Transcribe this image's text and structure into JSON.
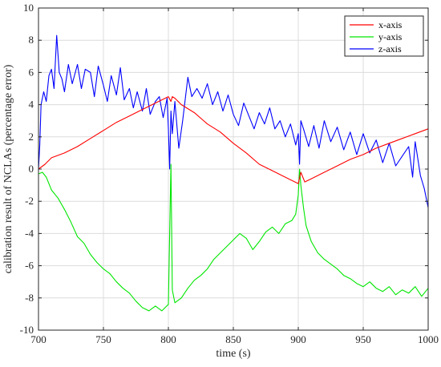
{
  "chart_data": {
    "type": "line",
    "title": "",
    "xlabel": "time (s)",
    "ylabel": "calibration result of NCLAs (percentage error)",
    "xlim": [
      700,
      1000
    ],
    "ylim": [
      -10,
      10
    ],
    "xticks": [
      700,
      750,
      800,
      850,
      900,
      950,
      1000
    ],
    "yticks": [
      -10,
      -8,
      -6,
      -4,
      -2,
      0,
      2,
      4,
      6,
      8,
      10
    ],
    "grid": true,
    "legend": "top-right",
    "series": [
      {
        "name": "x-axis",
        "color": "#ff0000",
        "x": [
          700,
          705,
          710,
          720,
          730,
          740,
          750,
          760,
          770,
          780,
          790,
          795,
          800,
          802,
          803,
          805,
          810,
          820,
          830,
          840,
          850,
          860,
          870,
          880,
          890,
          895,
          900,
          902,
          905,
          910,
          920,
          930,
          940,
          950,
          960,
          970,
          980,
          990,
          1000
        ],
        "y": [
          0.0,
          0.3,
          0.7,
          1.0,
          1.4,
          1.9,
          2.4,
          2.9,
          3.3,
          3.7,
          4.1,
          4.3,
          4.5,
          4.2,
          4.5,
          4.4,
          4.0,
          3.5,
          2.8,
          2.3,
          1.6,
          1.0,
          0.3,
          -0.1,
          -0.5,
          -0.7,
          -0.9,
          -0.2,
          -0.8,
          -0.6,
          -0.2,
          0.2,
          0.6,
          0.9,
          1.3,
          1.6,
          1.9,
          2.2,
          2.5
        ]
      },
      {
        "name": "y-axis",
        "color": "#00e600",
        "x": [
          700,
          703,
          706,
          710,
          715,
          720,
          725,
          730,
          735,
          740,
          745,
          750,
          755,
          760,
          765,
          770,
          775,
          780,
          785,
          790,
          795,
          800,
          801,
          802,
          803,
          805,
          810,
          815,
          820,
          825,
          830,
          835,
          840,
          845,
          850,
          855,
          860,
          865,
          870,
          875,
          880,
          885,
          890,
          895,
          898,
          900,
          901,
          902,
          904,
          906,
          910,
          915,
          920,
          925,
          930,
          935,
          940,
          945,
          950,
          955,
          960,
          965,
          970,
          975,
          980,
          985,
          990,
          995,
          1000
        ],
        "y": [
          -0.3,
          -0.2,
          -0.5,
          -1.3,
          -1.8,
          -2.5,
          -3.3,
          -4.2,
          -4.6,
          -5.3,
          -5.8,
          -6.2,
          -6.5,
          -7.0,
          -7.4,
          -7.7,
          -8.2,
          -8.6,
          -8.8,
          -8.5,
          -8.8,
          -8.4,
          -4.0,
          0.3,
          -7.5,
          -8.3,
          -8.0,
          -7.4,
          -6.9,
          -6.6,
          -6.2,
          -5.6,
          -5.2,
          -4.8,
          -4.4,
          -4.0,
          -4.3,
          -5.0,
          -4.5,
          -3.9,
          -3.6,
          -4.0,
          -3.4,
          -3.2,
          -2.8,
          -1.6,
          0.0,
          -1.0,
          -2.4,
          -3.5,
          -4.5,
          -5.2,
          -5.6,
          -5.9,
          -6.2,
          -6.6,
          -6.8,
          -7.1,
          -7.3,
          -7.0,
          -7.4,
          -7.6,
          -7.3,
          -7.8,
          -7.5,
          -7.7,
          -7.3,
          -7.9,
          -7.4
        ]
      },
      {
        "name": "z-axis",
        "color": "#0000ff",
        "x": [
          700,
          701,
          702,
          704,
          706,
          708,
          710,
          712,
          714,
          716,
          718,
          720,
          723,
          726,
          730,
          733,
          736,
          740,
          743,
          746,
          750,
          753,
          756,
          760,
          763,
          766,
          770,
          773,
          776,
          780,
          783,
          786,
          790,
          793,
          796,
          799,
          800,
          801,
          802,
          803,
          805,
          808,
          811,
          815,
          818,
          822,
          826,
          830,
          834,
          838,
          842,
          846,
          850,
          854,
          858,
          862,
          866,
          870,
          874,
          878,
          882,
          886,
          890,
          894,
          898,
          900,
          901,
          902,
          904,
          908,
          912,
          916,
          920,
          925,
          930,
          935,
          940,
          945,
          950,
          955,
          960,
          965,
          970,
          975,
          980,
          985,
          988,
          990,
          994,
          997,
          1000
        ],
        "y": [
          0.0,
          1.5,
          4.0,
          4.8,
          4.2,
          5.8,
          6.2,
          5.0,
          8.3,
          6.0,
          5.6,
          4.8,
          6.5,
          5.3,
          6.5,
          5.0,
          6.2,
          6.0,
          4.5,
          6.4,
          5.2,
          4.2,
          5.8,
          4.6,
          6.3,
          4.3,
          5.0,
          3.8,
          4.8,
          3.6,
          5.0,
          3.4,
          4.2,
          4.5,
          3.2,
          4.4,
          2.5,
          0.0,
          3.6,
          2.2,
          4.2,
          1.3,
          3.0,
          5.7,
          4.5,
          5.0,
          4.4,
          5.3,
          4.0,
          4.8,
          3.6,
          4.6,
          3.4,
          2.7,
          4.1,
          3.3,
          2.5,
          3.5,
          2.8,
          3.8,
          2.5,
          3.0,
          2.0,
          2.8,
          1.5,
          2.2,
          0.3,
          3.0,
          2.5,
          1.4,
          2.7,
          1.3,
          3.0,
          1.7,
          2.6,
          1.2,
          2.3,
          0.9,
          2.2,
          1.0,
          1.8,
          0.4,
          1.6,
          0.2,
          0.8,
          1.4,
          -0.5,
          1.7,
          -0.4,
          -1.2,
          -2.4
        ]
      }
    ]
  }
}
